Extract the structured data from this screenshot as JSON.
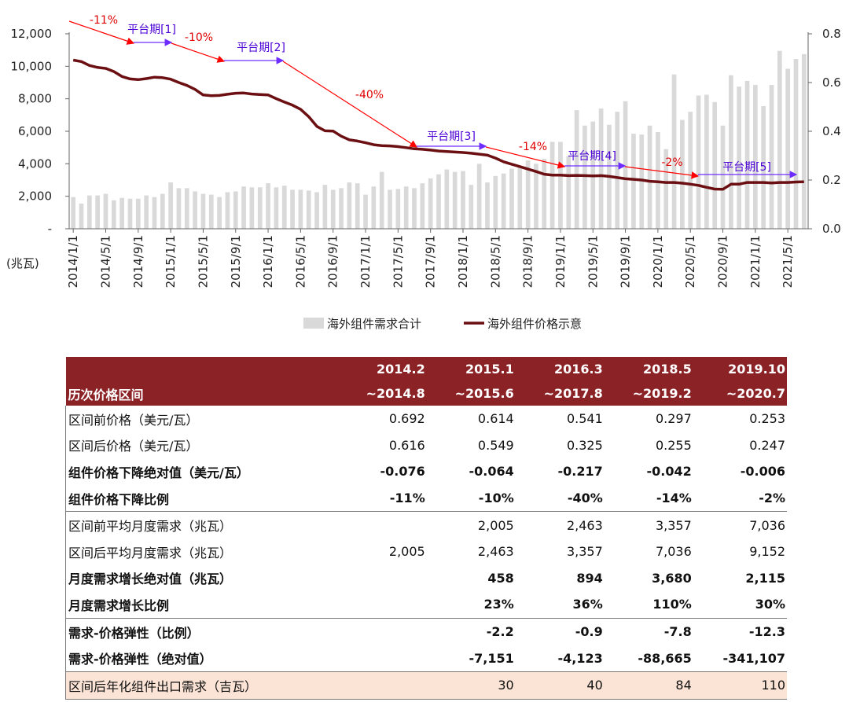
{
  "chart_data": {
    "type": "bar+line",
    "y_left_ticks": [
      "12,000",
      "10,000",
      "8,000",
      "6,000",
      "4,000",
      "2,000",
      "-"
    ],
    "y_left_range": [
      0,
      12000
    ],
    "y_left_unit": "(兆瓦)",
    "y_right_ticks": [
      "0.8",
      "0.6",
      "0.4",
      "0.2",
      "0.0"
    ],
    "y_right_range": [
      0,
      0.8
    ],
    "x_tick_labels": [
      "2014/1/1",
      "2014/5/1",
      "2014/9/1",
      "2015/1/1",
      "2015/5/1",
      "2015/9/1",
      "2016/1/1",
      "2016/5/1",
      "2016/9/1",
      "2017/1/1",
      "2017/5/1",
      "2017/9/1",
      "2018/1/1",
      "2018/5/1",
      "2018/9/1",
      "2019/1/1",
      "2019/5/1",
      "2019/9/1",
      "2020/1/1",
      "2020/5/1",
      "2020/9/1",
      "2021/1/1",
      "2021/5/1"
    ],
    "bar_series_name": "海外组件需求合计",
    "line_series_name": "海外组件价格示意",
    "bar_color": "#d9d9d9",
    "line_color": "#6b0f12",
    "demand": [
      1950,
      1550,
      2050,
      2050,
      2150,
      1750,
      1900,
      1850,
      1850,
      2050,
      1950,
      2150,
      2850,
      2500,
      2500,
      2300,
      2150,
      2100,
      1950,
      2250,
      2300,
      2600,
      2550,
      2550,
      2800,
      2550,
      2650,
      2400,
      2400,
      2350,
      2250,
      2700,
      2400,
      2500,
      2850,
      2800,
      2100,
      2600,
      3500,
      2400,
      2450,
      2600,
      2500,
      2800,
      3100,
      3350,
      3650,
      3500,
      3550,
      2700,
      4000,
      2850,
      3250,
      3400,
      3700,
      3800,
      4200,
      4000,
      4300,
      5350,
      5350,
      4450,
      7300,
      6350,
      6600,
      7400,
      6400,
      7200,
      7850,
      5850,
      5800,
      6350,
      5950,
      4900,
      9500,
      6700,
      7200,
      8200,
      8250,
      7800,
      6350,
      9450,
      8750,
      9100,
      8850,
      7550,
      8850,
      10950,
      9850,
      10450,
      10750
    ],
    "price": [
      0.692,
      0.686,
      0.67,
      0.662,
      0.658,
      0.645,
      0.625,
      0.615,
      0.612,
      0.616,
      0.622,
      0.62,
      0.614,
      0.6,
      0.588,
      0.572,
      0.549,
      0.546,
      0.547,
      0.552,
      0.556,
      0.557,
      0.553,
      0.551,
      0.549,
      0.534,
      0.52,
      0.507,
      0.49,
      0.46,
      0.42,
      0.402,
      0.401,
      0.38,
      0.365,
      0.36,
      0.353,
      0.345,
      0.341,
      0.34,
      0.337,
      0.333,
      0.328,
      0.326,
      0.323,
      0.319,
      0.317,
      0.315,
      0.313,
      0.31,
      0.306,
      0.302,
      0.29,
      0.275,
      0.265,
      0.255,
      0.245,
      0.235,
      0.224,
      0.22,
      0.22,
      0.218,
      0.219,
      0.218,
      0.217,
      0.218,
      0.215,
      0.21,
      0.205,
      0.203,
      0.2,
      0.195,
      0.193,
      0.19,
      0.19,
      0.187,
      0.183,
      0.178,
      0.17,
      0.163,
      0.162,
      0.183,
      0.183,
      0.19,
      0.19,
      0.19,
      0.188,
      0.19,
      0.19,
      0.192,
      0.193
    ],
    "annotations": {
      "drops": [
        "-11%",
        "-10%",
        "-40%",
        "-14%",
        "-2%"
      ],
      "plateaus": [
        "平台期[1]",
        "平台期[2]",
        "平台期[3]",
        "平台期[4]",
        "平台期[5]"
      ]
    }
  },
  "table": {
    "header_top": [
      "2014.2",
      "2015.1",
      "2016.3",
      "2018.5",
      "2019.10"
    ],
    "header_label": "历次价格区间",
    "header_bottom": [
      "~2014.8",
      "~2015.6",
      "~2017.8",
      "~2019.2",
      "~2020.7"
    ],
    "rows": [
      {
        "label": "区间前价格（美元/瓦）",
        "values": [
          "0.692",
          "0.614",
          "0.541",
          "0.297",
          "0.253"
        ]
      },
      {
        "label": "区间后价格（美元/瓦）",
        "values": [
          "0.616",
          "0.549",
          "0.325",
          "0.255",
          "0.247"
        ]
      },
      {
        "label": "组件价格下降绝对值（美元/瓦）",
        "values": [
          "-0.076",
          "-0.064",
          "-0.217",
          "-0.042",
          "-0.006"
        ]
      },
      {
        "label": "组件价格下降比例",
        "values": [
          "-11%",
          "-10%",
          "-40%",
          "-14%",
          "-2%"
        ]
      },
      {
        "label": "区间前平均月度需求（兆瓦）",
        "values": [
          "",
          "2,005",
          "2,463",
          "3,357",
          "7,036"
        ]
      },
      {
        "label": "区间后平均月度需求（兆瓦）",
        "values": [
          "2,005",
          "2,463",
          "3,357",
          "7,036",
          "9,152"
        ]
      },
      {
        "label": "月度需求增长绝对值（兆瓦）",
        "values": [
          "",
          "458",
          "894",
          "3,680",
          "2,115"
        ]
      },
      {
        "label": "月度需求增长比例",
        "values": [
          "",
          "23%",
          "36%",
          "110%",
          "30%"
        ]
      },
      {
        "label": "需求-价格弹性（比例）",
        "values": [
          "",
          "-2.2",
          "-0.9",
          "-7.8",
          "-12.3"
        ]
      },
      {
        "label": "需求-价格弹性（绝对值）",
        "values": [
          "",
          "-7,151",
          "-4,123",
          "-88,665",
          "-341,107"
        ]
      },
      {
        "label": "区间后年化组件出口需求（吉瓦）",
        "values": [
          "",
          "30",
          "40",
          "84",
          "110"
        ]
      }
    ]
  }
}
